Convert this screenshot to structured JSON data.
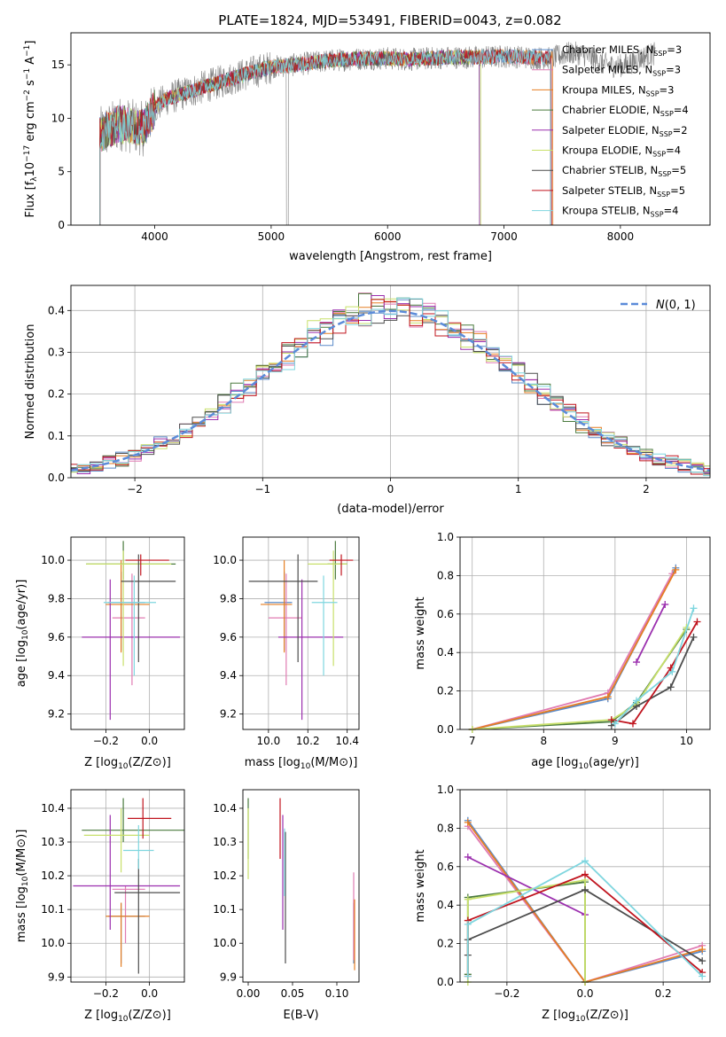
{
  "title": "PLATE=1824, MJD=53491, FIBERID=0043, z=0.082",
  "colors": {
    "Chabrier MILES": "#5b8bc9",
    "Salpeter MILES": "#e07bb2",
    "Kroupa MILES": "#e67e22",
    "Chabrier ELODIE": "#4a7a3e",
    "Salpeter ELODIE": "#9b2fae",
    "Kroupa ELODIE": "#c8e06a",
    "Chabrier STELIB": "#4d4d4d",
    "Salpeter STELIB": "#c0141e",
    "Kroupa STELIB": "#7fd6df",
    "gaussian": "#5b8bd9",
    "data": "#808080"
  },
  "chart_data": [
    {
      "id": "spectrum",
      "type": "line",
      "xlabel": "wavelength [Angstrom, rest frame]",
      "ylabel": "Flux [fλ10⁻¹⁷ erg cm⁻² s⁻¹ A⁻¹]",
      "xlim": [
        3280,
        8770
      ],
      "ylim": [
        0,
        18
      ],
      "xticks": [
        4000,
        5000,
        6000,
        7000,
        8000
      ],
      "yticks": [
        0,
        5,
        10,
        15
      ],
      "grid": false,
      "legend_position": "upper right",
      "continuum": {
        "x": [
          3530,
          3700,
          3900,
          4000,
          4100,
          4300,
          4500,
          4800,
          5000,
          5200,
          5500,
          5800,
          6000,
          6200,
          6500,
          6800,
          7000,
          7200,
          7400
        ],
        "y": [
          8.5,
          9.5,
          9.0,
          11.0,
          11.8,
          12.5,
          13.2,
          14.2,
          14.8,
          15.0,
          15.4,
          15.6,
          15.6,
          15.5,
          15.7,
          15.7,
          15.8,
          15.7,
          15.6
        ]
      },
      "data_extends_to": 8300,
      "series": [
        {
          "name": "Chabrier MILES",
          "legend": "Chabrier MILES, N",
          "nssp": "=3"
        },
        {
          "name": "Salpeter MILES",
          "legend": "Salpeter MILES, N",
          "nssp": "=3"
        },
        {
          "name": "Kroupa MILES",
          "legend": "Kroupa MILES, N",
          "nssp": "=3"
        },
        {
          "name": "Chabrier ELODIE",
          "legend": "Chabrier ELODIE, N",
          "nssp": "=4"
        },
        {
          "name": "Salpeter ELODIE",
          "legend": "Salpeter ELODIE, N",
          "nssp": "=2"
        },
        {
          "name": "Kroupa ELODIE",
          "legend": "Kroupa ELODIE, N",
          "nssp": "=4"
        },
        {
          "name": "Chabrier STELIB",
          "legend": "Chabrier STELIB, N",
          "nssp": "=5"
        },
        {
          "name": "Salpeter STELIB",
          "legend": "Salpeter STELIB, N",
          "nssp": "=5"
        },
        {
          "name": "Kroupa STELIB",
          "legend": "Kroupa STELIB, N",
          "nssp": "=4"
        }
      ]
    },
    {
      "id": "residuals",
      "type": "line",
      "xlabel": "(data-model)/error",
      "ylabel": "Normed distribution",
      "xlim": [
        -2.5,
        2.5
      ],
      "ylim": [
        0,
        0.46
      ],
      "xticks": [
        -2,
        -1,
        0,
        1,
        2
      ],
      "yticks": [
        0.0,
        0.1,
        0.2,
        0.3,
        0.4
      ],
      "grid": true,
      "legend": "N(0, 1)",
      "bin_width": 0.1
    },
    {
      "id": "age_vs_Z",
      "type": "scatter",
      "xlabel": "Z [log10(Z/Z⊙)]",
      "ylabel": "age  [log10(age/yr)]",
      "xlim": [
        -0.36,
        0.16
      ],
      "ylim": [
        9.12,
        10.12
      ],
      "xticks": [
        -0.2,
        0.0
      ],
      "yticks": [
        9.2,
        9.4,
        9.6,
        9.8,
        10.0
      ],
      "grid": true,
      "points": [
        {
          "s": "Chabrier MILES",
          "x": -0.13,
          "y": 9.78,
          "xe": [
            -0.19,
            -0.02
          ],
          "ye": [
            9.53,
            9.94
          ]
        },
        {
          "s": "Salpeter MILES",
          "x": -0.08,
          "y": 9.7,
          "xe": [
            -0.17,
            -0.02
          ],
          "ye": [
            9.35,
            9.93
          ]
        },
        {
          "s": "Kroupa MILES",
          "x": -0.13,
          "y": 9.77,
          "xe": [
            -0.2,
            0.0
          ],
          "ye": [
            9.52,
            10.0
          ]
        },
        {
          "s": "Chabrier ELODIE",
          "x": -0.12,
          "y": 9.98,
          "xe": [
            -0.29,
            0.12
          ],
          "ye": [
            9.9,
            10.1
          ]
        },
        {
          "s": "Salpeter ELODIE",
          "x": -0.18,
          "y": 9.6,
          "xe": [
            -0.31,
            0.14
          ],
          "ye": [
            9.17,
            9.9
          ]
        },
        {
          "s": "Kroupa ELODIE",
          "x": -0.12,
          "y": 9.98,
          "xe": [
            -0.29,
            0.1
          ],
          "ye": [
            9.45,
            10.05
          ]
        },
        {
          "s": "Chabrier STELIB",
          "x": -0.05,
          "y": 9.89,
          "xe": [
            -0.13,
            0.12
          ],
          "ye": [
            9.47,
            10.03
          ]
        },
        {
          "s": "Salpeter STELIB",
          "x": -0.04,
          "y": 10.0,
          "xe": [
            -0.11,
            0.09
          ],
          "ye": [
            9.92,
            10.03
          ]
        },
        {
          "s": "Kroupa STELIB",
          "x": -0.07,
          "y": 9.78,
          "xe": [
            -0.21,
            0.03
          ],
          "ye": [
            9.4,
            9.92
          ]
        }
      ]
    },
    {
      "id": "age_vs_mass",
      "type": "scatter",
      "xlabel": "mass [log10(M/M⊙)]",
      "ylabel": "",
      "xlim": [
        9.87,
        10.46
      ],
      "ylim": [
        9.12,
        10.12
      ],
      "xticks": [
        10.0,
        10.2,
        10.4
      ],
      "yticks": [
        9.2,
        9.4,
        9.6,
        9.8,
        10.0
      ],
      "grid": true,
      "points": [
        {
          "s": "Chabrier MILES",
          "x": 10.08,
          "y": 9.78,
          "xe": [
            9.98,
            10.12
          ],
          "ye": [
            9.53,
            9.94
          ]
        },
        {
          "s": "Salpeter MILES",
          "x": 10.09,
          "y": 9.7,
          "xe": [
            10.0,
            10.17
          ],
          "ye": [
            9.35,
            9.93
          ]
        },
        {
          "s": "Kroupa MILES",
          "x": 10.08,
          "y": 9.77,
          "xe": [
            9.96,
            10.12
          ],
          "ye": [
            9.52,
            10.0
          ]
        },
        {
          "s": "Chabrier ELODIE",
          "x": 10.34,
          "y": 9.98,
          "xe": [
            10.3,
            10.4
          ],
          "ye": [
            9.9,
            10.1
          ]
        },
        {
          "s": "Salpeter ELODIE",
          "x": 10.17,
          "y": 9.6,
          "xe": [
            10.05,
            10.38
          ],
          "ye": [
            9.17,
            9.9
          ]
        },
        {
          "s": "Kroupa ELODIE",
          "x": 10.33,
          "y": 9.98,
          "xe": [
            10.2,
            10.4
          ],
          "ye": [
            9.45,
            10.05
          ]
        },
        {
          "s": "Chabrier STELIB",
          "x": 10.15,
          "y": 9.89,
          "xe": [
            9.9,
            10.25
          ],
          "ye": [
            9.47,
            10.03
          ]
        },
        {
          "s": "Salpeter STELIB",
          "x": 10.37,
          "y": 10.0,
          "xe": [
            10.31,
            10.43
          ],
          "ye": [
            9.92,
            10.03
          ]
        },
        {
          "s": "Kroupa STELIB",
          "x": 10.28,
          "y": 9.78,
          "xe": [
            10.22,
            10.35
          ],
          "ye": [
            9.4,
            9.92
          ]
        }
      ]
    },
    {
      "id": "weight_vs_age",
      "type": "line",
      "xlabel": "age  [log10(age/yr)]",
      "ylabel": "mass weight",
      "xlim": [
        6.83,
        10.33
      ],
      "ylim": [
        0,
        1
      ],
      "xticks": [
        7,
        8,
        9,
        10
      ],
      "yticks": [
        0.0,
        0.2,
        0.4,
        0.6,
        0.8,
        1.0
      ],
      "grid": true,
      "series": [
        {
          "name": "Chabrier MILES",
          "x": [
            7.0,
            8.9,
            9.85
          ],
          "y": [
            0.0,
            0.16,
            0.84
          ]
        },
        {
          "name": "Salpeter MILES",
          "x": [
            7.0,
            8.9,
            9.8
          ],
          "y": [
            0.0,
            0.19,
            0.81
          ]
        },
        {
          "name": "Kroupa MILES",
          "x": [
            7.0,
            8.9,
            9.85
          ],
          "y": [
            0.0,
            0.17,
            0.83
          ]
        },
        {
          "name": "Chabrier ELODIE",
          "x": [
            7.0,
            8.95,
            9.3,
            10.0
          ],
          "y": [
            0.0,
            0.04,
            0.14,
            0.52
          ]
        },
        {
          "name": "Salpeter ELODIE",
          "x": [
            9.3,
            9.7
          ],
          "y": [
            0.35,
            0.65
          ]
        },
        {
          "name": "Kroupa ELODIE",
          "x": [
            7.0,
            8.95,
            9.3,
            10.0
          ],
          "y": [
            0.0,
            0.05,
            0.13,
            0.53
          ]
        },
        {
          "name": "Chabrier STELIB",
          "x": [
            8.95,
            9.3,
            9.78,
            10.1
          ],
          "y": [
            0.02,
            0.12,
            0.22,
            0.48
          ]
        },
        {
          "name": "Salpeter STELIB",
          "x": [
            8.95,
            9.25,
            9.78,
            10.15
          ],
          "y": [
            0.05,
            0.03,
            0.32,
            0.56
          ]
        },
        {
          "name": "Kroupa STELIB",
          "x": [
            9.0,
            9.3,
            9.8,
            10.1
          ],
          "y": [
            0.03,
            0.15,
            0.3,
            0.63
          ]
        }
      ]
    },
    {
      "id": "mass_vs_Z",
      "type": "scatter",
      "xlabel": "Z [log10(Z/Z⊙)]",
      "ylabel": "mass [log10(M/M⊙)]",
      "xlim": [
        -0.36,
        0.16
      ],
      "ylim": [
        9.885,
        10.455
      ],
      "xticks": [
        -0.2,
        0.0
      ],
      "yticks": [
        9.9,
        10.0,
        10.1,
        10.2,
        10.3,
        10.4
      ],
      "grid": true,
      "points": [
        {
          "s": "Chabrier MILES",
          "x": -0.13,
          "y": 10.08,
          "xe": [
            -0.19,
            -0.02
          ],
          "ye": [
            9.94,
            10.12
          ]
        },
        {
          "s": "Salpeter MILES",
          "x": -0.11,
          "y": 10.16,
          "xe": [
            -0.17,
            -0.02
          ],
          "ye": [
            10.0,
            10.17
          ]
        },
        {
          "s": "Kroupa MILES",
          "x": -0.13,
          "y": 10.08,
          "xe": [
            -0.2,
            0.0
          ],
          "ye": [
            9.93,
            10.12
          ]
        },
        {
          "s": "Chabrier ELODIE",
          "x": -0.12,
          "y": 10.335,
          "xe": [
            -0.31,
            0.16
          ],
          "ye": [
            10.3,
            10.43
          ]
        },
        {
          "s": "Salpeter ELODIE",
          "x": -0.18,
          "y": 10.17,
          "xe": [
            -0.35,
            0.14
          ],
          "ye": [
            10.04,
            10.38
          ]
        },
        {
          "s": "Kroupa ELODIE",
          "x": -0.13,
          "y": 10.32,
          "xe": [
            -0.3,
            0.0
          ],
          "ye": [
            10.21,
            10.4
          ]
        },
        {
          "s": "Chabrier STELIB",
          "x": -0.05,
          "y": 10.15,
          "xe": [
            -0.16,
            0.14
          ],
          "ye": [
            9.91,
            10.25
          ]
        },
        {
          "s": "Salpeter STELIB",
          "x": -0.03,
          "y": 10.37,
          "xe": [
            -0.1,
            0.1
          ],
          "ye": [
            10.31,
            10.43
          ]
        },
        {
          "s": "Kroupa STELIB",
          "x": -0.05,
          "y": 10.275,
          "xe": [
            -0.12,
            0.02
          ],
          "ye": [
            10.22,
            10.35
          ]
        }
      ]
    },
    {
      "id": "mass_vs_EBV",
      "type": "scatter",
      "xlabel": "E(B-V)",
      "ylabel": "",
      "xlim": [
        -0.006,
        0.125
      ],
      "ylim": [
        9.885,
        10.455
      ],
      "xticks": [
        0.0,
        0.05,
        0.1
      ],
      "xtick_labels": [
        "0.00",
        "0.05",
        "0.10"
      ],
      "yticks": [
        9.9,
        10.0,
        10.1,
        10.2,
        10.3,
        10.4
      ],
      "grid": false,
      "points": [
        {
          "s": "Chabrier MILES",
          "x": 0.119,
          "y": 10.08,
          "ye": [
            9.94,
            10.12
          ]
        },
        {
          "s": "Salpeter MILES",
          "x": 0.119,
          "y": 10.14,
          "ye": [
            9.95,
            10.21
          ]
        },
        {
          "s": "Kroupa MILES",
          "x": 0.12,
          "y": 10.05,
          "ye": [
            9.92,
            10.13
          ]
        },
        {
          "s": "Chabrier ELODIE",
          "x": 0.0,
          "y": 10.335,
          "ye": [
            10.25,
            10.43
          ]
        },
        {
          "s": "Salpeter ELODIE",
          "x": 0.039,
          "y": 10.17,
          "ye": [
            10.04,
            10.38
          ]
        },
        {
          "s": "Kroupa ELODIE",
          "x": 0.0,
          "y": 10.32,
          "ye": [
            10.19,
            10.4
          ]
        },
        {
          "s": "Chabrier STELIB",
          "x": 0.042,
          "y": 10.1,
          "ye": [
            9.94,
            10.33
          ]
        },
        {
          "s": "Salpeter STELIB",
          "x": 0.036,
          "y": 10.37,
          "ye": [
            10.25,
            10.43
          ]
        },
        {
          "s": "Kroupa STELIB",
          "x": 0.041,
          "y": 10.25,
          "ye": [
            10.14,
            10.34
          ]
        }
      ]
    },
    {
      "id": "weight_vs_Z",
      "type": "line",
      "xlabel": "Z [log10(Z/Z⊙)]",
      "ylabel": "mass weight",
      "xlim": [
        -0.32,
        0.32
      ],
      "ylim": [
        0,
        1
      ],
      "xticks": [
        -0.2,
        0.0,
        0.2
      ],
      "yticks": [
        0.0,
        0.2,
        0.4,
        0.6,
        0.8,
        1.0
      ],
      "grid": true,
      "series": [
        {
          "name": "Chabrier MILES",
          "x": [
            -0.3,
            0.0,
            0.3
          ],
          "y": [
            0.84,
            0.0,
            0.16
          ]
        },
        {
          "name": "Salpeter MILES",
          "x": [
            -0.3,
            0.0,
            0.3
          ],
          "y": [
            0.81,
            0.0,
            0.19
          ]
        },
        {
          "name": "Kroupa MILES",
          "x": [
            -0.3,
            0.0,
            0.3
          ],
          "y": [
            0.83,
            0.0,
            0.17
          ]
        },
        {
          "name": "Chabrier ELODIE",
          "x": [
            -0.3,
            -0.3,
            0.0,
            0.0
          ],
          "y": [
            0.04,
            0.44,
            0.52,
            0.0
          ]
        },
        {
          "name": "Salpeter ELODIE",
          "x": [
            -0.3,
            0.0
          ],
          "y": [
            0.65,
            0.35
          ]
        },
        {
          "name": "Kroupa ELODIE",
          "x": [
            -0.3,
            -0.3,
            0.0,
            0.0
          ],
          "y": [
            0.0,
            0.43,
            0.53,
            0.0
          ]
        },
        {
          "name": "Chabrier STELIB",
          "x": [
            -0.3,
            -0.3,
            0.0,
            0.3
          ],
          "y": [
            0.14,
            0.22,
            0.48,
            0.11
          ]
        },
        {
          "name": "Salpeter STELIB",
          "x": [
            -0.3,
            -0.3,
            0.0,
            0.3
          ],
          "y": [
            0.03,
            0.32,
            0.56,
            0.05
          ]
        },
        {
          "name": "Kroupa STELIB",
          "x": [
            -0.3,
            -0.3,
            0.0,
            0.3
          ],
          "y": [
            0.03,
            0.3,
            0.63,
            0.03
          ]
        }
      ]
    }
  ]
}
